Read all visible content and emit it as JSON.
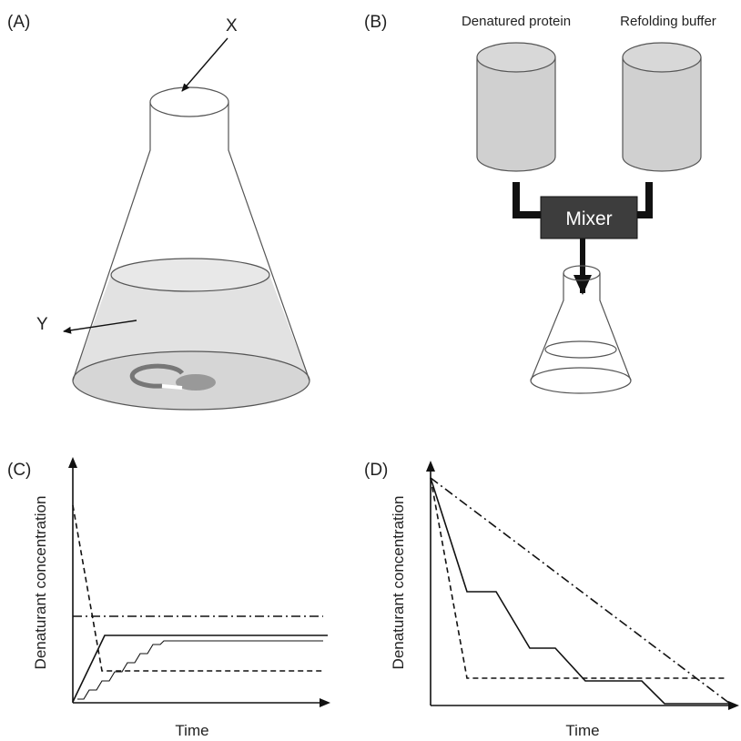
{
  "panel_a": {
    "label": "(A)",
    "x_label": "X",
    "y_label": "Y"
  },
  "panel_b": {
    "label": "(B)",
    "left_reservoir": "Denatured protein",
    "right_reservoir": "Refolding buffer",
    "mixer": "Mixer"
  },
  "panel_c": {
    "label": "(C)",
    "y_axis": "Denaturant concentration",
    "x_axis": "Time"
  },
  "panel_d": {
    "label": "(D)",
    "y_axis": "Denaturant concentration",
    "x_axis": "Time"
  }
}
